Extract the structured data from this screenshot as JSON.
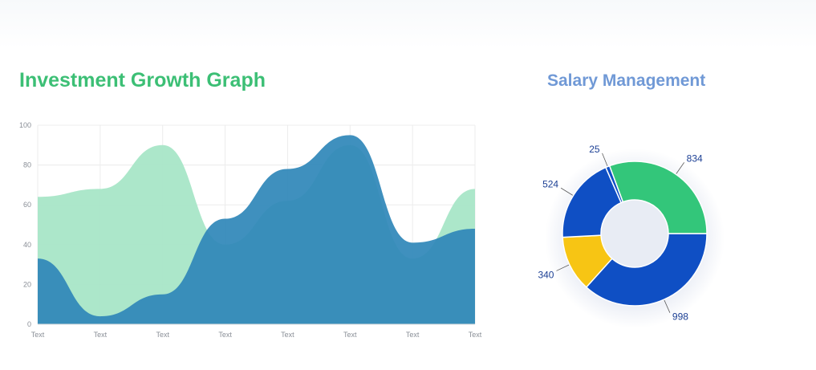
{
  "titles": {
    "area": "Investment Growth Graph",
    "donut": "Salary Management"
  },
  "colors": {
    "area_title": "#3cbf75",
    "donut_title": "#7099d6",
    "green_area": "#a8e6c7",
    "blue_area": "#2f87b8",
    "grid": "#ececec"
  },
  "chart_data": [
    {
      "type": "area",
      "title": "Investment Growth Graph",
      "categories": [
        "Text",
        "Text",
        "Text",
        "Text",
        "Text",
        "Text",
        "Text",
        "Text"
      ],
      "y_ticks": [
        "0",
        "20",
        "40",
        "60",
        "80",
        "100"
      ],
      "ylim": [
        0,
        100
      ],
      "grid": true,
      "series": [
        {
          "color": "#a8e6c7",
          "values": [
            64,
            68,
            90,
            40,
            62,
            90,
            33,
            68
          ]
        },
        {
          "color": "#2f87b8",
          "values": [
            33,
            4,
            15,
            53,
            78,
            95,
            41,
            48
          ]
        }
      ]
    },
    {
      "type": "pie",
      "title": "Salary Management",
      "donut": true,
      "slices": [
        {
          "label": "998",
          "value": 998,
          "color": "#0f4fc4"
        },
        {
          "label": "340",
          "value": 340,
          "color": "#f7c514"
        },
        {
          "label": "524",
          "value": 524,
          "color": "#0f4fc4"
        },
        {
          "label": "25",
          "value": 25,
          "color": "#0f4fc4"
        },
        {
          "label": "834",
          "value": 834,
          "color": "#33c67a"
        }
      ]
    }
  ]
}
